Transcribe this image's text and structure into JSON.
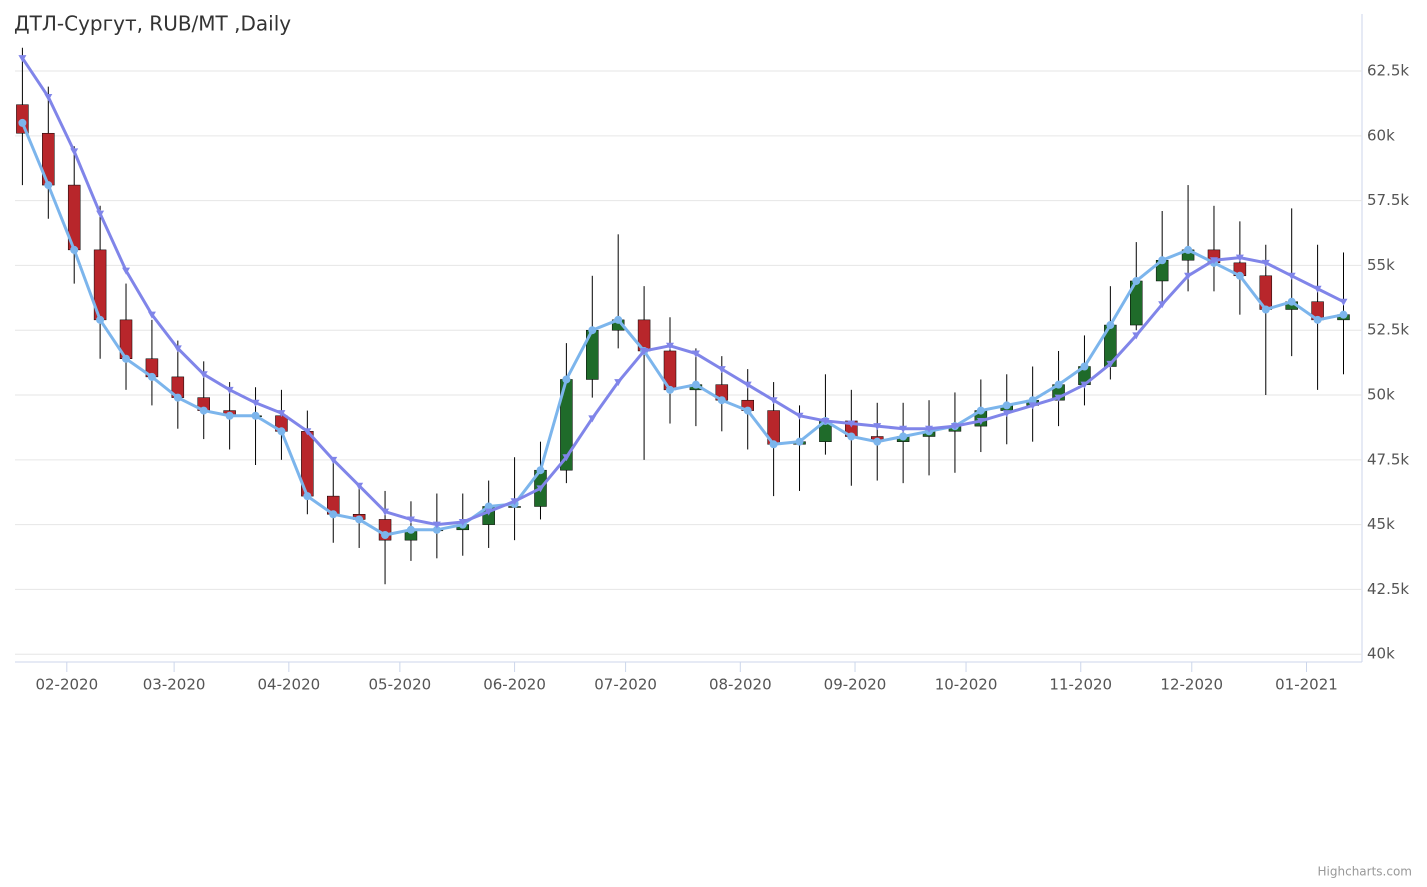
{
  "chart_data": {
    "type": "candlestick",
    "title": "ДТЛ-Сургут, RUB/MT ,Daily",
    "credits": "Highcharts.com",
    "x": [
      "2020-01-20",
      "2020-01-27",
      "2020-02-03",
      "2020-02-10",
      "2020-02-17",
      "2020-02-24",
      "2020-03-02",
      "2020-03-09",
      "2020-03-16",
      "2020-03-23",
      "2020-03-30",
      "2020-04-06",
      "2020-04-13",
      "2020-04-20",
      "2020-04-27",
      "2020-05-04",
      "2020-05-11",
      "2020-05-18",
      "2020-05-25",
      "2020-06-01",
      "2020-06-08",
      "2020-06-15",
      "2020-06-22",
      "2020-06-29",
      "2020-07-06",
      "2020-07-13",
      "2020-07-20",
      "2020-07-27",
      "2020-08-03",
      "2020-08-10",
      "2020-08-17",
      "2020-08-24",
      "2020-08-31",
      "2020-09-07",
      "2020-09-14",
      "2020-09-21",
      "2020-09-28",
      "2020-10-05",
      "2020-10-12",
      "2020-10-19",
      "2020-10-26",
      "2020-11-02",
      "2020-11-09",
      "2020-11-16",
      "2020-11-23",
      "2020-11-30",
      "2020-12-07",
      "2020-12-14",
      "2020-12-21",
      "2020-12-28",
      "2021-01-04",
      "2021-01-11"
    ],
    "open": [
      61200,
      60100,
      58100,
      55600,
      52900,
      51400,
      50700,
      49900,
      49400,
      49200,
      49200,
      48600,
      46100,
      45400,
      45200,
      44400,
      44800,
      44800,
      45000,
      45700,
      45700,
      47100,
      50600,
      52500,
      52900,
      51700,
      50200,
      50400,
      49800,
      49400,
      48100,
      48200,
      49000,
      48400,
      48200,
      48400,
      48600,
      48800,
      49400,
      49600,
      49800,
      50400,
      51100,
      52700,
      54400,
      55200,
      55600,
      55100,
      54600,
      53300,
      53600,
      52900
    ],
    "high": [
      63400,
      61900,
      59600,
      57300,
      54300,
      52900,
      52100,
      51300,
      50500,
      50300,
      50200,
      49400,
      47400,
      46500,
      46300,
      45900,
      46200,
      46200,
      46700,
      47600,
      48200,
      52000,
      54600,
      56200,
      54200,
      53000,
      51800,
      51500,
      51000,
      50500,
      49600,
      50800,
      50200,
      49700,
      49700,
      49800,
      50100,
      50600,
      50800,
      51100,
      51700,
      52300,
      54200,
      55900,
      57100,
      58100,
      57300,
      56700,
      55800,
      57200,
      55800,
      55500
    ],
    "low": [
      58100,
      56800,
      54300,
      51400,
      50200,
      49600,
      48700,
      48300,
      47900,
      47300,
      47500,
      45400,
      44300,
      44100,
      42700,
      43600,
      43700,
      43800,
      44100,
      44400,
      45200,
      46600,
      49900,
      51800,
      47500,
      48900,
      48800,
      48600,
      47900,
      46100,
      46300,
      47700,
      46500,
      46700,
      46600,
      46900,
      47000,
      47800,
      48100,
      48200,
      48800,
      49600,
      50600,
      52500,
      53600,
      54000,
      54000,
      53100,
      50000,
      51500,
      50200,
      50800
    ],
    "close": [
      60100,
      58100,
      55600,
      52900,
      51400,
      50700,
      49900,
      49400,
      49200,
      49200,
      48600,
      46100,
      45400,
      45200,
      44400,
      44800,
      44800,
      45000,
      45700,
      45700,
      47100,
      50600,
      52500,
      52900,
      51700,
      50200,
      50400,
      49800,
      49400,
      48100,
      48200,
      49000,
      48400,
      48200,
      48400,
      48600,
      48800,
      49400,
      49600,
      49800,
      50400,
      51100,
      52700,
      54400,
      55200,
      55600,
      55100,
      54600,
      53300,
      53600,
      52900,
      53100
    ],
    "up_color": "#1f6b2a",
    "down_color": "#b8262b",
    "wick_color": "#000000",
    "series": [
      {
        "color": "#7cb5ec",
        "marker": "circle",
        "values": [
          60500,
          58100,
          55600,
          52900,
          51400,
          50700,
          49900,
          49400,
          49200,
          49200,
          48600,
          46100,
          45400,
          45200,
          44600,
          44800,
          44800,
          45000,
          45700,
          45800,
          47100,
          50600,
          52500,
          52900,
          51700,
          50200,
          50400,
          49800,
          49400,
          48100,
          48200,
          49000,
          48400,
          48200,
          48400,
          48600,
          48800,
          49400,
          49600,
          49800,
          50400,
          51100,
          52700,
          54400,
          55200,
          55600,
          55100,
          54600,
          53300,
          53600,
          52900,
          53100
        ]
      },
      {
        "color": "#8085e9",
        "marker": "triangle-down",
        "values": [
          63000,
          61500,
          59400,
          57000,
          54800,
          53100,
          51800,
          50800,
          50200,
          49700,
          49300,
          48600,
          47500,
          46500,
          45500,
          45200,
          45000,
          45100,
          45500,
          45900,
          46400,
          47600,
          49100,
          50500,
          51700,
          51900,
          51600,
          51000,
          50400,
          49800,
          49200,
          49000,
          48900,
          48800,
          48700,
          48700,
          48800,
          49000,
          49300,
          49600,
          49900,
          50400,
          51200,
          52300,
          53500,
          54600,
          55200,
          55300,
          55100,
          54600,
          54100,
          53600
        ]
      }
    ],
    "xlim": [
      "2020-01-18",
      "2021-01-16"
    ],
    "xticks": [
      {
        "value": "2020-02-01",
        "label": "02-2020"
      },
      {
        "value": "2020-03-01",
        "label": "03-2020"
      },
      {
        "value": "2020-04-01",
        "label": "04-2020"
      },
      {
        "value": "2020-05-01",
        "label": "05-2020"
      },
      {
        "value": "2020-06-01",
        "label": "06-2020"
      },
      {
        "value": "2020-07-01",
        "label": "07-2020"
      },
      {
        "value": "2020-08-01",
        "label": "08-2020"
      },
      {
        "value": "2020-09-01",
        "label": "09-2020"
      },
      {
        "value": "2020-10-01",
        "label": "10-2020"
      },
      {
        "value": "2020-11-01",
        "label": "11-2020"
      },
      {
        "value": "2020-12-01",
        "label": "12-2020"
      },
      {
        "value": "2021-01-01",
        "label": "01-2021"
      }
    ],
    "ylim": [
      39700,
      64700
    ],
    "yticks": [
      {
        "value": 40000,
        "label": "40k"
      },
      {
        "value": 42500,
        "label": "42.5k"
      },
      {
        "value": 45000,
        "label": "45k"
      },
      {
        "value": 47500,
        "label": "47.5k"
      },
      {
        "value": 50000,
        "label": "50k"
      },
      {
        "value": 52500,
        "label": "52.5k"
      },
      {
        "value": 55000,
        "label": "55k"
      },
      {
        "value": 57500,
        "label": "57.5k"
      },
      {
        "value": 60000,
        "label": "60k"
      },
      {
        "value": 62500,
        "label": "62.5k"
      }
    ],
    "grid": true
  }
}
